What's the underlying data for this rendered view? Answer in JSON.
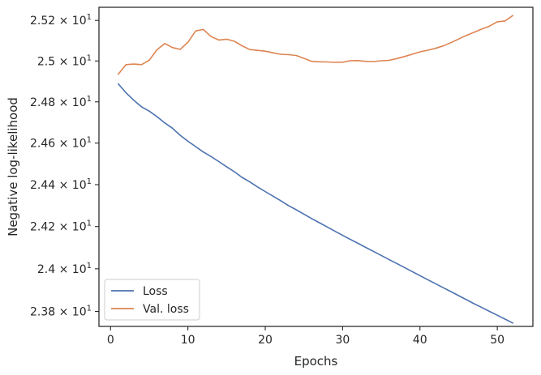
{
  "chart_data": {
    "type": "line",
    "title": "",
    "xlabel": "Epochs",
    "ylabel": "Negative log-likelihood",
    "xlim": [
      -1.5,
      54.6
    ],
    "ylim": [
      23.73,
      25.265
    ],
    "yscale": "log",
    "grid": false,
    "legend_position": "lower-left",
    "x_ticks": [
      0,
      10,
      20,
      30,
      40,
      50
    ],
    "x_tick_labels": [
      "0",
      "10",
      "20",
      "30",
      "40",
      "50"
    ],
    "y_ticks": [
      23.8,
      24.0,
      24.2,
      24.4,
      24.6,
      24.8,
      25.0,
      25.2
    ],
    "y_tick_mantissas": [
      "2.38",
      "2.4",
      "2.42",
      "2.44",
      "2.46",
      "2.48",
      "2.5",
      "2.52"
    ],
    "y_tick_base": "10",
    "y_tick_exponent": "1",
    "series": [
      {
        "name": "Loss",
        "color": "#4c72b0",
        "x": [
          1,
          2,
          3,
          4,
          5,
          6,
          7,
          8,
          9,
          10,
          11,
          12,
          13,
          14,
          15,
          16,
          17,
          18,
          19,
          20,
          21,
          22,
          23,
          24,
          25,
          26,
          27,
          28,
          29,
          30,
          31,
          32,
          33,
          34,
          35,
          36,
          37,
          38,
          39,
          40,
          41,
          42,
          43,
          44,
          45,
          46,
          47,
          48,
          49,
          50,
          51,
          52
        ],
        "values": [
          24.888,
          24.844,
          24.808,
          24.776,
          24.755,
          24.728,
          24.698,
          24.672,
          24.638,
          24.609,
          24.583,
          24.557,
          24.535,
          24.511,
          24.486,
          24.462,
          24.435,
          24.413,
          24.389,
          24.367,
          24.345,
          24.323,
          24.3,
          24.28,
          24.259,
          24.238,
          24.218,
          24.198,
          24.178,
          24.158,
          24.139,
          24.12,
          24.101,
          24.082,
          24.063,
          24.044,
          24.025,
          24.006,
          23.987,
          23.968,
          23.949,
          23.93,
          23.911,
          23.893,
          23.874,
          23.855,
          23.836,
          23.818,
          23.8,
          23.782,
          23.764,
          23.746
        ]
      },
      {
        "name": "Val. loss",
        "color": "#dd8452",
        "x": [
          1,
          2,
          3,
          4,
          5,
          6,
          7,
          8,
          9,
          10,
          11,
          12,
          13,
          14,
          15,
          16,
          17,
          18,
          19,
          20,
          21,
          22,
          23,
          24,
          25,
          26,
          27,
          28,
          29,
          30,
          31,
          32,
          33,
          34,
          35,
          36,
          37,
          38,
          39,
          40,
          41,
          42,
          43,
          44,
          45,
          46,
          47,
          48,
          49,
          50,
          51,
          52
        ],
        "values": [
          24.935,
          24.982,
          24.985,
          24.982,
          25.004,
          25.055,
          25.086,
          25.066,
          25.057,
          25.092,
          25.148,
          25.155,
          25.12,
          25.103,
          25.107,
          25.097,
          25.075,
          25.056,
          25.052,
          25.048,
          25.04,
          25.033,
          25.031,
          25.027,
          25.013,
          24.998,
          24.996,
          24.995,
          24.993,
          24.994,
          25.001,
          25.002,
          24.998,
          24.997,
          25.001,
          25.003,
          25.012,
          25.022,
          25.033,
          25.045,
          25.053,
          25.062,
          25.074,
          25.09,
          25.108,
          25.126,
          25.141,
          25.157,
          25.172,
          25.193,
          25.197,
          25.224
        ]
      }
    ]
  }
}
